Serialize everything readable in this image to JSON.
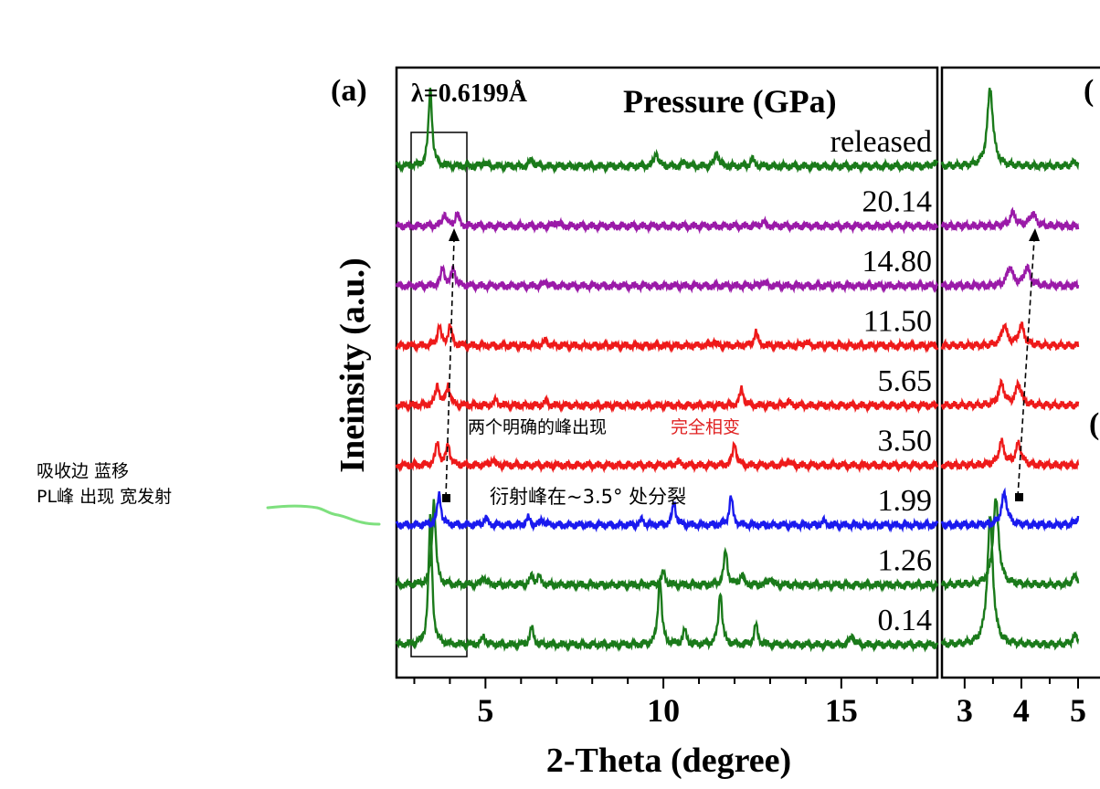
{
  "chart_data": {
    "type": "line",
    "panel_a": {
      "label": "(a)",
      "wavelength": "λ=0.6199Å",
      "legend_title": "Pressure (GPa)",
      "xlabel": "2-Theta (degree)",
      "ylabel": "Ineinsity (a.u.)",
      "xlim": [
        2.5,
        17.7
      ],
      "xticks": [
        "5",
        "10",
        "15"
      ],
      "xtick_values": [
        5,
        10,
        15
      ],
      "series": [
        {
          "name": "0.14",
          "color": "#1a7a1a",
          "baseline": 0.0,
          "peaks": [
            [
              3.45,
              9.0
            ],
            [
              4.95,
              0.6
            ],
            [
              6.3,
              1.2
            ],
            [
              9.9,
              4.8
            ],
            [
              10.6,
              1.0
            ],
            [
              11.6,
              3.8
            ],
            [
              12.6,
              1.4
            ],
            [
              15.3,
              0.7
            ]
          ]
        },
        {
          "name": "1.26",
          "color": "#1a7a1a",
          "baseline": 1.0,
          "peaks": [
            [
              3.55,
              6.0
            ],
            [
              4.95,
              0.6
            ],
            [
              6.3,
              0.6
            ],
            [
              6.5,
              0.6
            ],
            [
              10.0,
              0.9
            ],
            [
              11.75,
              2.4
            ],
            [
              12.2,
              0.7
            ],
            [
              13.0,
              0.5
            ]
          ]
        },
        {
          "name": "1.99",
          "color": "#1a1aee",
          "baseline": 2.0,
          "peaks": [
            [
              3.7,
              2.2
            ],
            [
              5.0,
              0.5
            ],
            [
              6.2,
              0.5
            ],
            [
              6.6,
              0.4
            ],
            [
              9.4,
              0.4
            ],
            [
              10.3,
              1.6
            ],
            [
              11.9,
              2.0
            ],
            [
              14.5,
              0.3
            ]
          ]
        },
        {
          "name": "3.50",
          "color": "#ee1a1a",
          "baseline": 3.0,
          "peaks": [
            [
              3.65,
              1.6
            ],
            [
              3.95,
              1.5
            ],
            [
              5.2,
              0.4
            ],
            [
              10.4,
              0.3
            ],
            [
              12.0,
              1.6
            ],
            [
              13.5,
              0.3
            ]
          ]
        },
        {
          "name": "5.65",
          "color": "#ee1a1a",
          "baseline": 4.0,
          "peaks": [
            [
              3.65,
              1.5
            ],
            [
              3.95,
              1.5
            ],
            [
              5.3,
              0.4
            ],
            [
              6.7,
              0.3
            ],
            [
              12.2,
              1.2
            ],
            [
              13.5,
              0.3
            ]
          ]
        },
        {
          "name": "11.50",
          "color": "#ee1a1a",
          "baseline": 5.0,
          "peaks": [
            [
              3.7,
              1.4
            ],
            [
              4.0,
              1.4
            ],
            [
              6.7,
              0.4
            ],
            [
              11.4,
              0.3
            ],
            [
              12.6,
              1.0
            ],
            [
              14.0,
              0.3
            ]
          ]
        },
        {
          "name": "14.80",
          "color": "#9a1aa8",
          "baseline": 6.0,
          "peaks": [
            [
              3.8,
              1.3
            ],
            [
              4.1,
              1.3
            ],
            [
              6.7,
              0.3
            ],
            [
              12.8,
              0.3
            ]
          ]
        },
        {
          "name": "20.14",
          "color": "#9a1aa8",
          "baseline": 7.0,
          "peaks": [
            [
              3.85,
              0.9
            ],
            [
              4.2,
              0.9
            ],
            [
              7.0,
              0.3
            ],
            [
              12.8,
              0.3
            ]
          ]
        },
        {
          "name": "released",
          "color": "#1a7a1a",
          "baseline": 8.0,
          "peaks": [
            [
              3.45,
              5.5
            ],
            [
              4.95,
              0.3
            ],
            [
              6.3,
              0.5
            ],
            [
              9.8,
              1.0
            ],
            [
              10.6,
              0.3
            ],
            [
              11.5,
              1.0
            ],
            [
              12.5,
              0.5
            ],
            [
              17.6,
              0.3
            ]
          ]
        }
      ]
    },
    "panel_b": {
      "label": "(",
      "xlim": [
        2.6,
        5.0
      ],
      "xticks": [
        "3",
        "4",
        "5"
      ],
      "xtick_values": [
        3,
        4,
        5
      ]
    },
    "annotations": {
      "two_peaks": "两个明确的峰出现",
      "phase_change": "完全相变",
      "split": "衍射峰在~3.5° 处分裂"
    },
    "side_notes": {
      "line1": "吸收边 蓝移",
      "line2": "PL峰 出现 宽发射"
    },
    "colors": {
      "green": "#1a7a1a",
      "blue": "#1a1aee",
      "red": "#ee1a1a",
      "purple": "#9a1aa8",
      "note_red": "#e02020",
      "scribble": "#7ee07e"
    }
  }
}
